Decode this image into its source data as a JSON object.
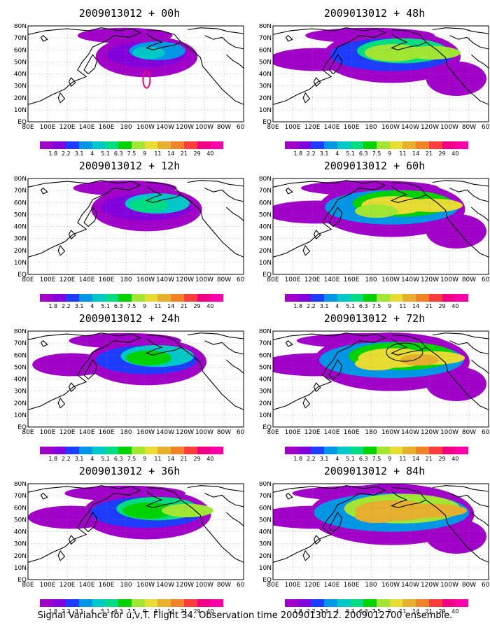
{
  "caption": "Signal Variance for u,v,T. Flight 34. Observation time 2009013012. 2009012700 ensemble.",
  "colorbar": {
    "labels": [
      "1.8",
      "2.2",
      "3.1",
      "4",
      "5.1",
      "6.3",
      "7.5",
      "9",
      "11",
      "14",
      "21",
      "29",
      "40"
    ],
    "colors": [
      "#a000c8",
      "#8200dc",
      "#1e3cff",
      "#0096e6",
      "#00c8c8",
      "#00dc82",
      "#00d200",
      "#a0e632",
      "#e6dc32",
      "#e6af2d",
      "#f08228",
      "#fa3c3c",
      "#f00082",
      "#ff00a8"
    ]
  },
  "axes": {
    "x_ticks": [
      "80E",
      "100E",
      "120E",
      "140E",
      "160E",
      "180",
      "160W",
      "140W",
      "120W",
      "100W",
      "80W",
      "60W"
    ],
    "y_ticks": [
      "EQ",
      "10N",
      "20N",
      "30N",
      "40N",
      "50N",
      "60N",
      "70N",
      "80N"
    ]
  },
  "panels": [
    {
      "title": "2009013012 + 00h"
    },
    {
      "title": "2009013012 + 48h"
    },
    {
      "title": "2009013012 + 12h"
    },
    {
      "title": "2009013012 + 60h"
    },
    {
      "title": "2009013012 + 24h"
    },
    {
      "title": "2009013012 + 72h"
    },
    {
      "title": "2009013012 + 36h"
    },
    {
      "title": "2009013012 + 84h"
    }
  ]
}
